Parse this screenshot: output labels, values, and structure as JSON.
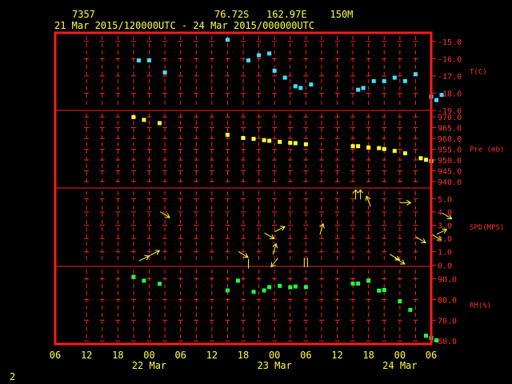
{
  "header": {
    "station": "7357",
    "position": "76.72S   162.97E    150M",
    "time_range": "21 Mar 2015/120000UTC - 24 Mar 2015/000000UTC"
  },
  "footer": {
    "page_number": "2"
  },
  "colors": {
    "frame": "#ff1a1a",
    "grid": "#ff2020",
    "temp": "#40e0ff",
    "pressure": "#ffff30",
    "wind": "#ffff30",
    "rh": "#20ff40",
    "label_red": "#ff3030",
    "label_yellow": "#ffff40"
  },
  "chart_data": {
    "type": "scatter",
    "x_unit": "hours since 21 Mar 06 UTC",
    "x_ticks": [
      "06",
      "12",
      "18",
      "00",
      "06",
      "12",
      "18",
      "00",
      "06",
      "12",
      "18",
      "00",
      "06"
    ],
    "date_labels": [
      {
        "label": "22 Mar"
      },
      {
        "label": "23 Mar"
      },
      {
        "label": "24 Mar"
      }
    ],
    "panels": [
      {
        "name": "T(C)",
        "ylim": [
          -19.0,
          -14.5
        ],
        "yticks": [
          "-15.0",
          "-16.0",
          "-17.0",
          "-18.0",
          "-19.0"
        ],
        "ytick_values": [
          -15,
          -16,
          -17,
          -18,
          -19
        ],
        "points": [
          [
            16,
            -16.1
          ],
          [
            18,
            -16.1
          ],
          [
            21,
            -16.8
          ],
          [
            33,
            -14.9
          ],
          [
            37,
            -16.1
          ],
          [
            39,
            -15.8
          ],
          [
            41,
            -15.7
          ],
          [
            42,
            -16.7
          ],
          [
            44,
            -17.1
          ],
          [
            46,
            -17.6
          ],
          [
            47,
            -17.7
          ],
          [
            49,
            -17.5
          ],
          [
            58,
            -17.8
          ],
          [
            59,
            -17.7
          ],
          [
            61,
            -17.3
          ],
          [
            63,
            -17.3
          ],
          [
            65,
            -17.1
          ],
          [
            67,
            -17.3
          ],
          [
            69,
            -16.9
          ],
          [
            72,
            -18.2
          ],
          [
            73,
            -18.4
          ],
          [
            74,
            -18.1
          ]
        ]
      },
      {
        "name": "Pre (mb)",
        "ylim": [
          937,
          973
        ],
        "yticks": [
          "970.0",
          "965.0",
          "960.0",
          "955.0",
          "950.0",
          "945.0",
          "940.0"
        ],
        "ytick_values": [
          970,
          965,
          960,
          955,
          950,
          945,
          940
        ],
        "points": [
          [
            15,
            969.9
          ],
          [
            17,
            968.6
          ],
          [
            20,
            967.1
          ],
          [
            33,
            961.7
          ],
          [
            36,
            960.2
          ],
          [
            38,
            959.8
          ],
          [
            40,
            959.2
          ],
          [
            41,
            958.9
          ],
          [
            43,
            958.4
          ],
          [
            45,
            958.0
          ],
          [
            46,
            957.8
          ],
          [
            48,
            957.3
          ],
          [
            57,
            956.4
          ],
          [
            58,
            956.4
          ],
          [
            60,
            955.8
          ],
          [
            62,
            955.5
          ],
          [
            63,
            955.1
          ],
          [
            65,
            954.2
          ],
          [
            67,
            953.1
          ],
          [
            70,
            950.8
          ],
          [
            71,
            950.1
          ],
          [
            72,
            949.5
          ]
        ]
      },
      {
        "name": "SPD(MPS)",
        "ylim": [
          -0.1,
          5.8
        ],
        "yticks": [
          "5.0",
          "4.0",
          "3.0",
          "2.0",
          "1.0",
          "0.0"
        ],
        "ytick_values": [
          5,
          4,
          3,
          2,
          1,
          0
        ],
        "arrows": [
          [
            17,
            0.5,
            "ur"
          ],
          [
            19,
            0.9,
            "ur"
          ],
          [
            21,
            3.8,
            "dr"
          ],
          [
            36,
            0.8,
            "dr"
          ],
          [
            37,
            0.1,
            "s"
          ],
          [
            41,
            2.2,
            "dr"
          ],
          [
            42,
            1.2,
            "u"
          ],
          [
            43,
            2.7,
            "ur"
          ],
          [
            42,
            0.2,
            "dl"
          ],
          [
            48,
            0.2,
            "ss"
          ],
          [
            51,
            2.7,
            "u"
          ],
          [
            58,
            5.3,
            "uu"
          ],
          [
            60,
            4.8,
            "ul"
          ],
          [
            65,
            0.6,
            "dr"
          ],
          [
            66,
            0.3,
            "dr"
          ],
          [
            67,
            4.7,
            "r"
          ],
          [
            70,
            1.9,
            "dr"
          ],
          [
            73,
            2.1,
            "dr"
          ],
          [
            74,
            2.5,
            "ur"
          ],
          [
            75,
            3.7,
            "dr"
          ]
        ]
      },
      {
        "name": "RH(%)",
        "ylim": [
          58.5,
          96
        ],
        "yticks": [
          "90.0",
          "80.0",
          "70.0",
          "60.0"
        ],
        "ytick_values": [
          90,
          80,
          70,
          60
        ],
        "points": [
          [
            15,
            91.0
          ],
          [
            17,
            89.1
          ],
          [
            20,
            87.6
          ],
          [
            33,
            84.4
          ],
          [
            35,
            89.1
          ],
          [
            38,
            83.7
          ],
          [
            40,
            84.4
          ],
          [
            41,
            86.0
          ],
          [
            43,
            86.6
          ],
          [
            45,
            85.9
          ],
          [
            46,
            86.3
          ],
          [
            48,
            86.0
          ],
          [
            57,
            87.7
          ],
          [
            58,
            87.7
          ],
          [
            60,
            89.0
          ],
          [
            62,
            84.3
          ],
          [
            63,
            84.6
          ],
          [
            66,
            79.1
          ],
          [
            68,
            75.0
          ],
          [
            71,
            62.5
          ],
          [
            72,
            61.5
          ],
          [
            73,
            60.3
          ]
        ]
      }
    ]
  }
}
